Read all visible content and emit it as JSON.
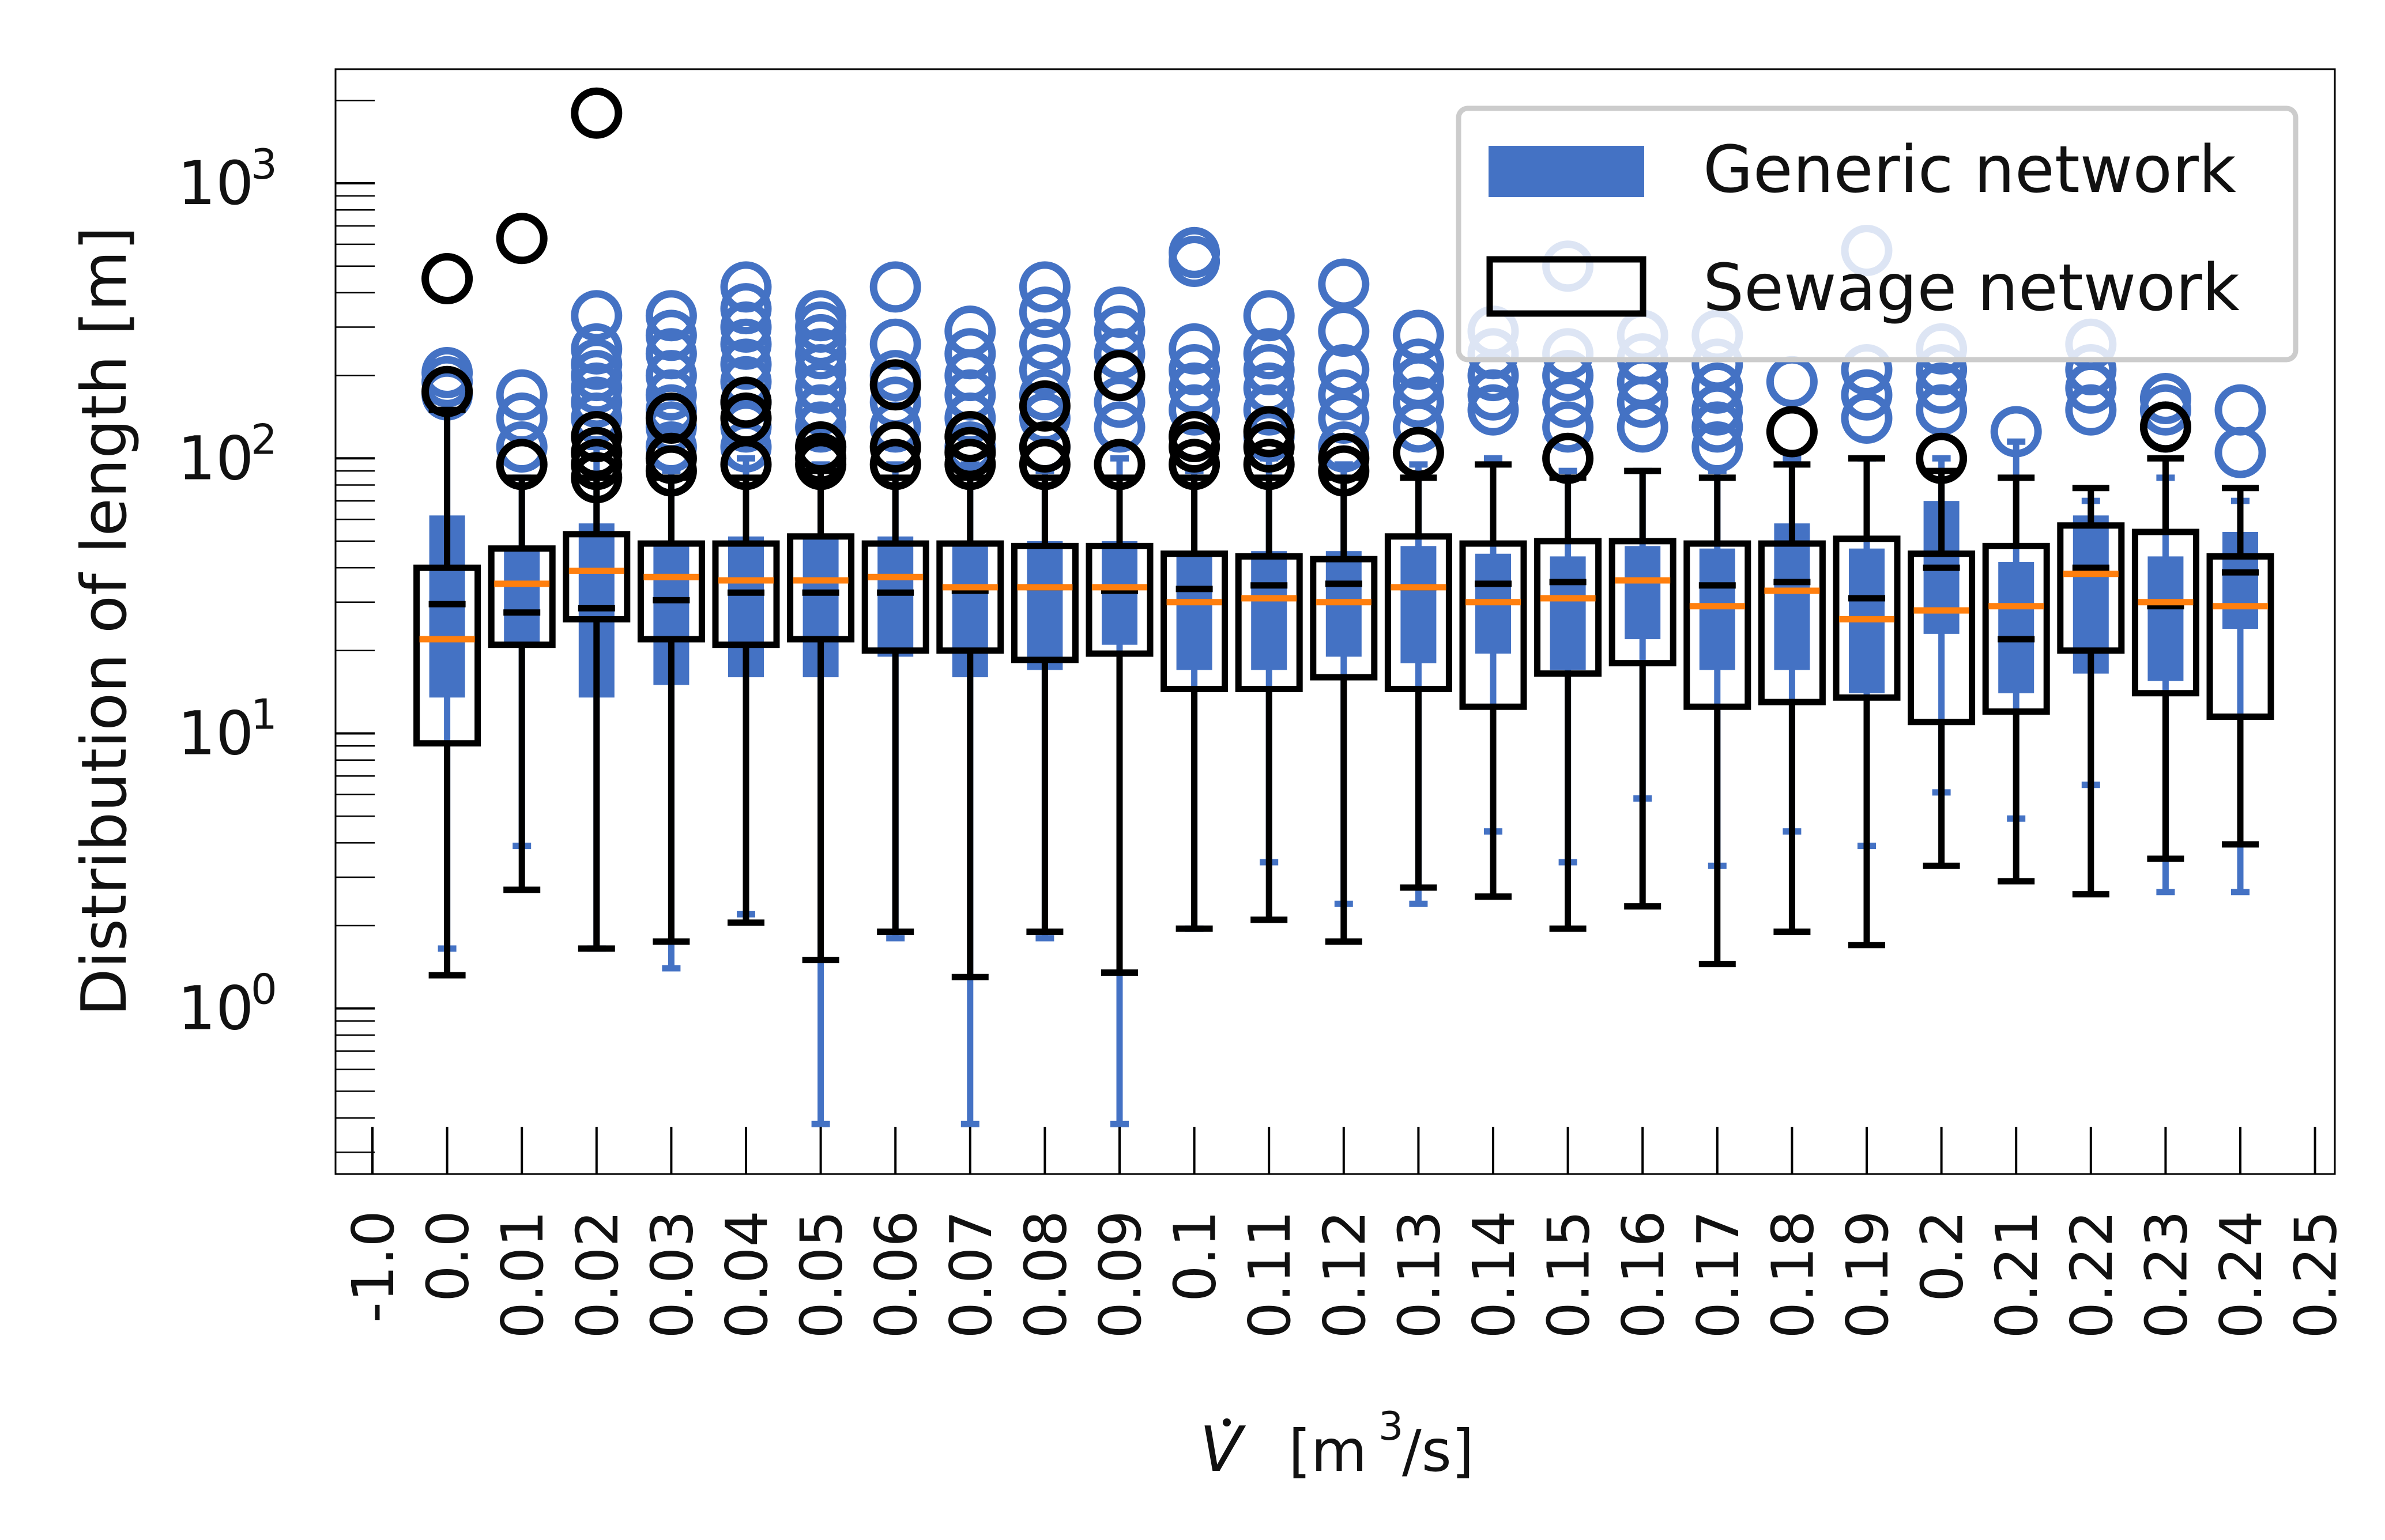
{
  "chart_data": {
    "type": "box",
    "ylabel": "Distribution of length [m]",
    "xlabel_main": "V",
    "xlabel_unit_open": "[m",
    "xlabel_unit_sup": "3",
    "xlabel_unit_close": "/s]",
    "yscale": "log",
    "ylim": [
      0.25,
      2600
    ],
    "y_ticks": [
      {
        "base": "10",
        "exp": "0",
        "value": 1
      },
      {
        "base": "10",
        "exp": "1",
        "value": 10
      },
      {
        "base": "10",
        "exp": "2",
        "value": 100
      },
      {
        "base": "10",
        "exp": "3",
        "value": 1000
      }
    ],
    "x_ticklabels": [
      "-1.0",
      "0.0",
      "0.01",
      "0.02",
      "0.03",
      "0.04",
      "0.05",
      "0.06",
      "0.07",
      "0.08",
      "0.09",
      "0.1",
      "0.11",
      "0.12",
      "0.13",
      "0.14",
      "0.15",
      "0.16",
      "0.17",
      "0.18",
      "0.19",
      "0.2",
      "0.21",
      "0.22",
      "0.23",
      "0.24",
      "0.25"
    ],
    "legend": {
      "placement": "top-right",
      "entries": [
        {
          "label": "Generic network",
          "color": "#4472c4",
          "style": "filled"
        },
        {
          "label": "Sewage network",
          "color": "#000000",
          "style": "outline"
        }
      ]
    },
    "colors": {
      "generic": "#4472c4",
      "sewage": "#000000",
      "median_generic": "#ff7f0e"
    },
    "series": [
      {
        "name": "Generic network",
        "boxes": [
          {
            "x": "0.0",
            "whislo": 1.65,
            "q1": 13.5,
            "med": 22,
            "q3": 62,
            "whishi": 150,
            "fliers": [
              170,
              190,
              205
            ]
          },
          {
            "x": "0.01",
            "whislo": 3.9,
            "q1": 21,
            "med": 35,
            "q3": 48,
            "whishi": 85,
            "fliers": [
              110,
              140,
              170
            ]
          },
          {
            "x": "0.02",
            "whislo": 1.65,
            "q1": 13.5,
            "med": 39,
            "q3": 58,
            "whishi": 110,
            "fliers": [
              140,
              160,
              180,
              200,
              220,
              250,
              330
            ]
          },
          {
            "x": "0.03",
            "whislo": 1.4,
            "q1": 15,
            "med": 37,
            "q3": 50,
            "whishi": 90,
            "fliers": [
              110,
              130,
              150,
              170,
              200,
              240,
              280,
              330
            ]
          },
          {
            "x": "0.04",
            "whislo": 2.2,
            "q1": 16,
            "med": 36,
            "q3": 52,
            "whishi": 100,
            "fliers": [
              110,
              130,
              160,
              190,
              220,
              260,
              300,
              350,
              420
            ]
          },
          {
            "x": "0.05",
            "whislo": 0.38,
            "q1": 16,
            "med": 36,
            "q3": 52,
            "whishi": 95,
            "fliers": [
              110,
              130,
              150,
              180,
              210,
              240,
              270,
              300,
              330
            ]
          },
          {
            "x": "0.06",
            "whislo": 1.8,
            "q1": 19,
            "med": 37,
            "q3": 52,
            "whishi": 95,
            "fliers": [
              130,
              160,
              200,
              260,
              420
            ]
          },
          {
            "x": "0.07",
            "whislo": 0.38,
            "q1": 16,
            "med": 34,
            "q3": 50,
            "whishi": 95,
            "fliers": [
              110,
              140,
              170,
              200,
              240,
              290
            ]
          },
          {
            "x": "0.08",
            "whislo": 1.8,
            "q1": 17,
            "med": 34,
            "q3": 50,
            "whishi": 90,
            "fliers": [
              110,
              140,
              170,
              210,
              260,
              340,
              420
            ]
          },
          {
            "x": "0.09",
            "whislo": 0.38,
            "q1": 21,
            "med": 34,
            "q3": 50,
            "whishi": 100,
            "fliers": [
              130,
              160,
              200,
              240,
              290,
              340
            ]
          },
          {
            "x": "0.1",
            "whislo": 1.95,
            "q1": 17,
            "med": 30,
            "q3": 44,
            "whishi": 90,
            "fliers": [
              120,
              150,
              180,
              210,
              250,
              520,
              560
            ]
          },
          {
            "x": "0.11",
            "whislo": 3.4,
            "q1": 17,
            "med": 31,
            "q3": 46,
            "whishi": 100,
            "fliers": [
              120,
              150,
              180,
              210,
              240,
              330
            ]
          },
          {
            "x": "0.12",
            "whislo": 2.4,
            "q1": 19,
            "med": 30,
            "q3": 46,
            "whishi": 95,
            "fliers": [
              110,
              140,
              170,
              210,
              290,
              430
            ]
          },
          {
            "x": "0.13",
            "whislo": 2.4,
            "q1": 18,
            "med": 34,
            "q3": 48,
            "whishi": 95,
            "fliers": [
              130,
              160,
              190,
              220,
              280
            ]
          },
          {
            "x": "0.14",
            "whislo": 4.4,
            "q1": 19.5,
            "med": 30,
            "q3": 45,
            "whishi": 100,
            "fliers": [
              150,
              170,
              200,
              240,
              290
            ]
          },
          {
            "x": "0.15",
            "whislo": 3.4,
            "q1": 17,
            "med": 31,
            "q3": 44,
            "whishi": 90,
            "fliers": [
              130,
              160,
              200,
              240,
              500
            ]
          },
          {
            "x": "0.16",
            "whislo": 5.8,
            "q1": 22,
            "med": 36,
            "q3": 48,
            "whishi": 90,
            "fliers": [
              130,
              160,
              190,
              230,
              280
            ]
          },
          {
            "x": "0.17",
            "whislo": 3.3,
            "q1": 17,
            "med": 29,
            "q3": 47,
            "whishi": 90,
            "fliers": [
              110,
              130,
              150,
              180,
              220,
              280
            ]
          },
          {
            "x": "0.18",
            "whislo": 4.4,
            "q1": 17,
            "med": 33,
            "q3": 58,
            "whishi": 100,
            "fliers": [
              190
            ]
          },
          {
            "x": "0.19",
            "whislo": 3.9,
            "q1": 14,
            "med": 26,
            "q3": 47,
            "whishi": 100,
            "fliers": [
              140,
              170,
              210,
              570
            ]
          },
          {
            "x": "0.2",
            "whislo": 6.1,
            "q1": 23,
            "med": 28,
            "q3": 70,
            "whishi": 100,
            "fliers": [
              150,
              180,
              210,
              250
            ]
          },
          {
            "x": "0.21",
            "whislo": 4.9,
            "q1": 14,
            "med": 29,
            "q3": 42,
            "whishi": 115,
            "fliers": [
              125
            ]
          },
          {
            "x": "0.22",
            "whislo": 6.5,
            "q1": 16.5,
            "med": 38,
            "q3": 62,
            "whishi": 70,
            "fliers": [
              150,
              180,
              210,
              260
            ]
          },
          {
            "x": "0.23",
            "whislo": 2.65,
            "q1": 15.5,
            "med": 30,
            "q3": 44,
            "whishi": 85,
            "fliers": [
              130,
              150,
              165
            ]
          },
          {
            "x": "0.24",
            "whislo": 2.65,
            "q1": 24,
            "med": 29,
            "q3": 54,
            "whishi": 70,
            "fliers": [
              105,
              150
            ]
          }
        ]
      },
      {
        "name": "Sewage network",
        "boxes": [
          {
            "x": "0.0",
            "whislo": 1.32,
            "q1": 9.2,
            "med": 29.5,
            "q3": 40,
            "whishi": 150,
            "fliers": [
              175,
              450
            ]
          },
          {
            "x": "0.01",
            "whislo": 2.7,
            "q1": 21,
            "med": 27.5,
            "q3": 47,
            "whishi": 85,
            "fliers": [
              95,
              630
            ]
          },
          {
            "x": "0.02",
            "whislo": 1.65,
            "q1": 26,
            "med": 28.5,
            "q3": 53,
            "whishi": 85,
            "fliers": [
              85,
              95,
              105,
              120,
              1800
            ]
          },
          {
            "x": "0.03",
            "whislo": 1.75,
            "q1": 22,
            "med": 30.5,
            "q3": 49,
            "whishi": 85,
            "fliers": [
              90,
              100,
              140
            ]
          },
          {
            "x": "0.04",
            "whislo": 2.05,
            "q1": 21,
            "med": 32.5,
            "q3": 49,
            "whishi": 85,
            "fliers": [
              95,
              140,
              160
            ]
          },
          {
            "x": "0.05",
            "whislo": 1.5,
            "q1": 22,
            "med": 32.5,
            "q3": 52,
            "whishi": 90,
            "fliers": [
              95,
              100,
              110
            ]
          },
          {
            "x": "0.06",
            "whislo": 1.9,
            "q1": 20,
            "med": 32.5,
            "q3": 49,
            "whishi": 85,
            "fliers": [
              95,
              110,
              185
            ]
          },
          {
            "x": "0.07",
            "whislo": 1.3,
            "q1": 20,
            "med": 33,
            "q3": 49,
            "whishi": 85,
            "fliers": [
              95,
              105,
              120
            ]
          },
          {
            "x": "0.08",
            "whislo": 1.9,
            "q1": 18.5,
            "med": 34,
            "q3": 48,
            "whishi": 85,
            "fliers": [
              95,
              110,
              155
            ]
          },
          {
            "x": "0.09",
            "whislo": 1.35,
            "q1": 19.5,
            "med": 33,
            "q3": 48,
            "whishi": 85,
            "fliers": [
              95,
              200
            ]
          },
          {
            "x": "0.1",
            "whislo": 1.95,
            "q1": 14.5,
            "med": 33.5,
            "q3": 45,
            "whishi": 85,
            "fliers": [
              95,
              110,
              120
            ]
          },
          {
            "x": "0.11",
            "whislo": 2.1,
            "q1": 14.5,
            "med": 34.5,
            "q3": 44,
            "whishi": 85,
            "fliers": [
              95,
              110,
              125
            ]
          },
          {
            "x": "0.12",
            "whislo": 1.75,
            "q1": 16,
            "med": 35,
            "q3": 43,
            "whishi": 85,
            "fliers": [
              90,
              100
            ]
          },
          {
            "x": "0.13",
            "whislo": 2.75,
            "q1": 14.5,
            "med": 34,
            "q3": 52,
            "whishi": 85,
            "fliers": [
              105
            ]
          },
          {
            "x": "0.14",
            "whislo": 2.55,
            "q1": 12.5,
            "med": 35,
            "q3": 49,
            "whishi": 95,
            "fliers": []
          },
          {
            "x": "0.15",
            "whislo": 1.95,
            "q1": 16.5,
            "med": 35.5,
            "q3": 50,
            "whishi": 85,
            "fliers": [
              100
            ]
          },
          {
            "x": "0.16",
            "whislo": 2.35,
            "q1": 18,
            "med": 36,
            "q3": 50,
            "whishi": 90,
            "fliers": []
          },
          {
            "x": "0.17",
            "whislo": 1.45,
            "q1": 12.5,
            "med": 34.5,
            "q3": 49,
            "whishi": 85,
            "fliers": []
          },
          {
            "x": "0.18",
            "whislo": 1.9,
            "q1": 13,
            "med": 35.5,
            "q3": 49,
            "whishi": 95,
            "fliers": [
              125
            ]
          },
          {
            "x": "0.19",
            "whislo": 1.7,
            "q1": 13.5,
            "med": 31,
            "q3": 51,
            "whishi": 100,
            "fliers": []
          },
          {
            "x": "0.2",
            "whislo": 3.3,
            "q1": 11,
            "med": 40,
            "q3": 45,
            "whishi": 90,
            "fliers": [
              100
            ]
          },
          {
            "x": "0.21",
            "whislo": 2.9,
            "q1": 12,
            "med": 22,
            "q3": 48,
            "whishi": 85,
            "fliers": []
          },
          {
            "x": "0.22",
            "whislo": 2.6,
            "q1": 20,
            "med": 40,
            "q3": 57,
            "whishi": 78,
            "fliers": []
          },
          {
            "x": "0.23",
            "whislo": 3.5,
            "q1": 14,
            "med": 29,
            "q3": 54,
            "whishi": 100,
            "fliers": [
              130
            ]
          },
          {
            "x": "0.24",
            "whislo": 3.95,
            "q1": 11.5,
            "med": 38.5,
            "q3": 44,
            "whishi": 78,
            "fliers": []
          }
        ]
      }
    ]
  }
}
